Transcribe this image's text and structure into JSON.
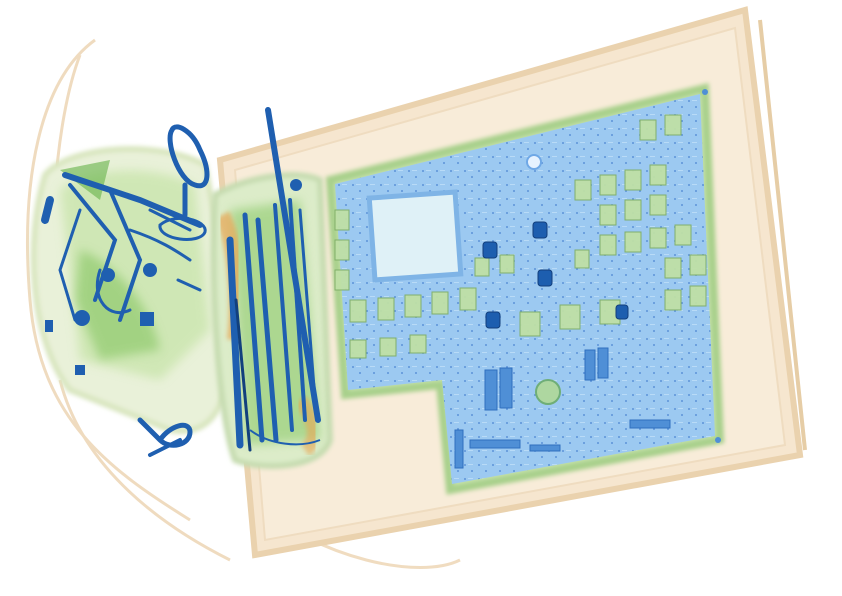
{
  "image": {
    "kind": "x-ray baggage scan",
    "palette": {
      "background": "#ffffff",
      "organic_light": "#f3e3c8",
      "organic_mid": "#e8c9a0",
      "organic_orange": "#e8a552",
      "mixed_green_light": "#c9e3a6",
      "mixed_green": "#7fc25a",
      "board_blue": "#9ac7f0",
      "board_blue_dark": "#6fa8e6",
      "metal_blue": "#1f5fb0",
      "metal_navy": "#12407d"
    },
    "objects": [
      "bag-outline",
      "large-case",
      "circuit-board",
      "cable-bundle",
      "tool-roll",
      "key-ring",
      "clips"
    ]
  }
}
